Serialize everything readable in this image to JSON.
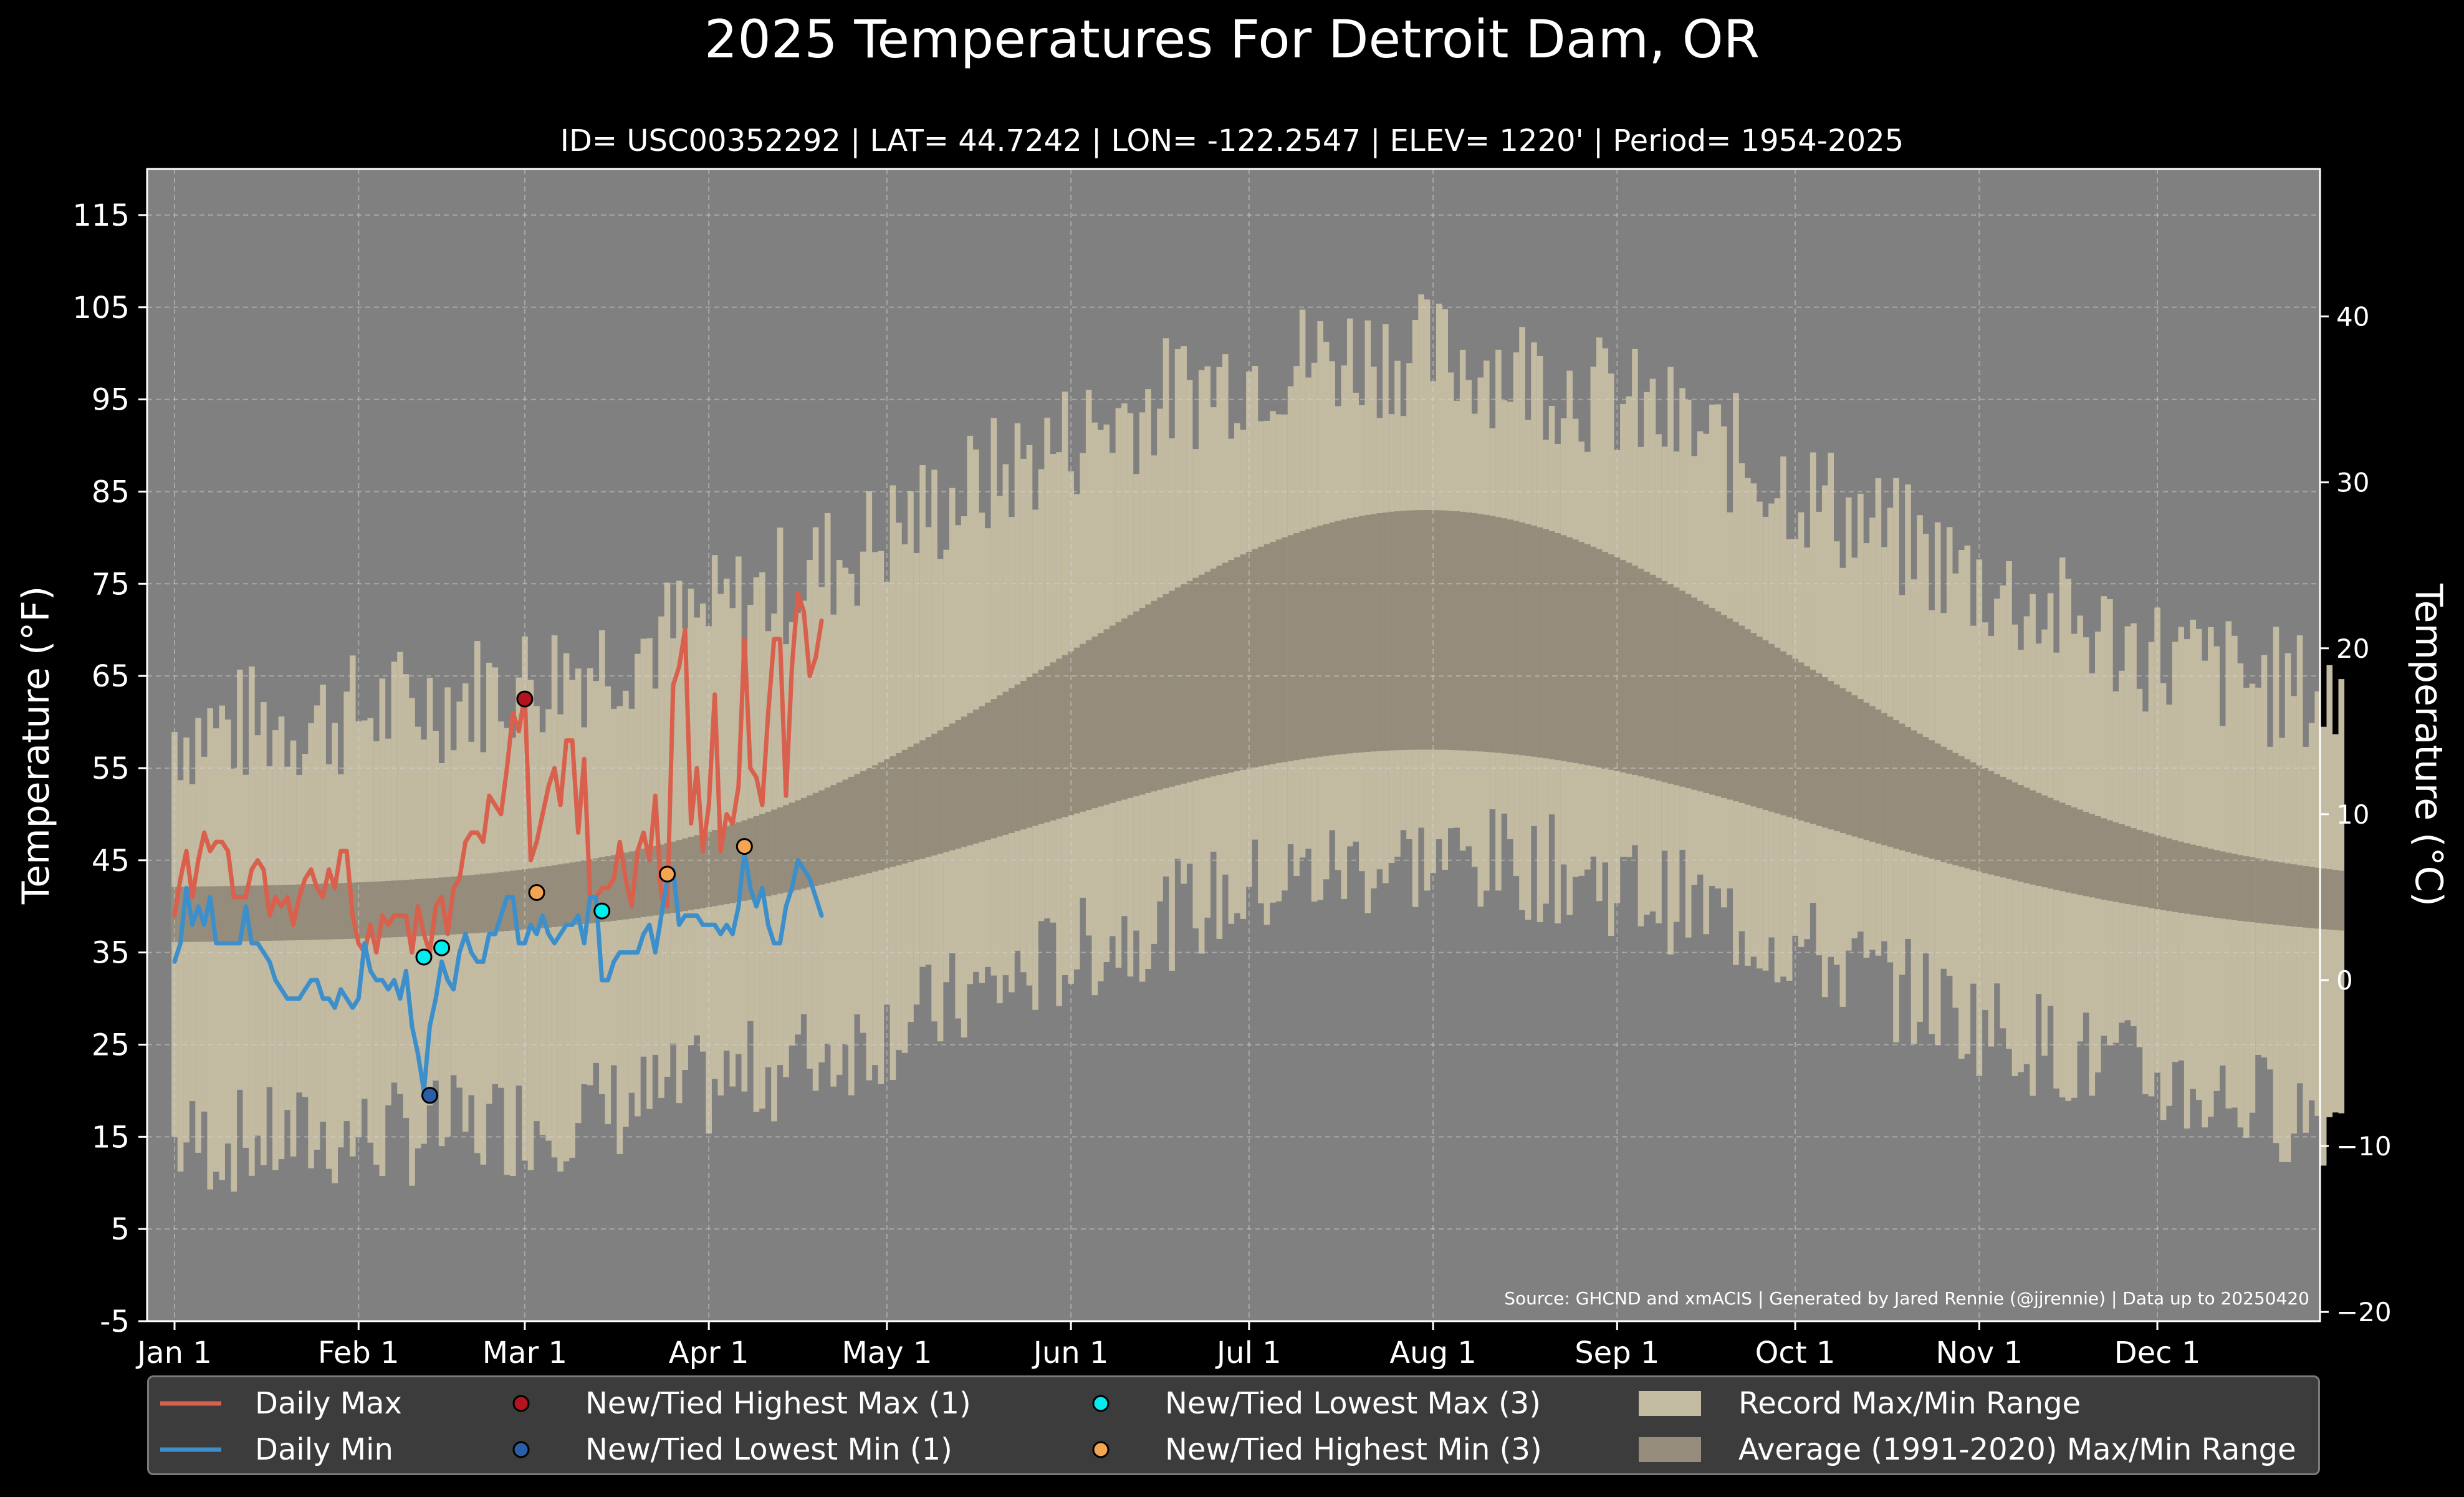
{
  "chart_data": {
    "type": "line",
    "title": "2025 Temperatures For Detroit Dam, OR",
    "subtitle": "ID= USC00352292 | LAT= 44.7242 | LON= -122.2547 | ELEV= 1220' | Period= 1954-2025",
    "ylabel": "Temperature (°F)",
    "ylabel_right": "Temperature (°C)",
    "ylim": [
      -5,
      120
    ],
    "yticks": [
      "-5",
      "5",
      "15",
      "25",
      "35",
      "45",
      "55",
      "65",
      "75",
      "85",
      "95",
      "105",
      "115"
    ],
    "yticks_right": [
      "−20",
      "−10",
      "0",
      "10",
      "20",
      "30",
      "40"
    ],
    "x_month_ticks": [
      "Jan 1",
      "Feb 1",
      "Mar 1",
      "Apr 1",
      "May 1",
      "Jun 1",
      "Jul 1",
      "Aug 1",
      "Sep 1",
      "Oct 1",
      "Nov 1",
      "Dec 1"
    ],
    "grid": true,
    "source_note": "Source: GHCND and xmACIS | Generated by Jared Rennie (@jjrennie) | Data up to 20250420",
    "colors": {
      "daily_max": "#d9604c",
      "daily_min": "#3d8fcb",
      "record_range": "#c3baa2",
      "average_range": "#958c7c",
      "plot_bg": "#808080",
      "record_highest_max": "#b3141f",
      "record_lowest_min": "#2a5fa8",
      "record_lowest_max": "#00eeee",
      "record_highest_min": "#f4a551"
    },
    "series": [
      {
        "name": "Daily Max",
        "x": [
          1,
          2,
          3,
          4,
          5,
          6,
          7,
          8,
          9,
          10,
          11,
          12,
          13,
          14,
          15,
          16,
          17,
          18,
          19,
          20,
          21,
          22,
          23,
          24,
          25,
          26,
          27,
          28,
          29,
          30,
          31,
          32,
          33,
          34,
          35,
          36,
          37,
          38,
          39,
          40,
          41,
          42,
          43,
          44,
          45,
          46,
          47,
          48,
          49,
          50,
          51,
          52,
          53,
          54,
          55,
          56,
          57,
          58,
          59,
          60,
          61,
          62,
          63,
          64,
          65,
          66,
          67,
          68,
          69,
          70,
          71,
          72,
          73,
          74,
          75,
          76,
          77,
          78,
          79,
          80,
          81,
          82,
          83,
          84,
          85,
          86,
          87,
          88,
          89,
          90,
          91,
          92,
          93,
          94,
          95,
          96,
          97,
          98,
          99,
          100,
          101,
          102,
          103,
          104,
          105,
          106,
          107,
          108,
          109,
          110
        ],
        "values": [
          39,
          43,
          46,
          41,
          45,
          48,
          46,
          47,
          47,
          46,
          41,
          41,
          41,
          44,
          45,
          44,
          39,
          41,
          40,
          41,
          38,
          41,
          43,
          44,
          42,
          41,
          44,
          42,
          46,
          46,
          39,
          36,
          35,
          38,
          35,
          39,
          38,
          39,
          39,
          39,
          35,
          40,
          37,
          35,
          40,
          41,
          37,
          42,
          43,
          47,
          48,
          48,
          47,
          52,
          51,
          50,
          55,
          61,
          59,
          63,
          45,
          47,
          50,
          53,
          55,
          51,
          58,
          58,
          48,
          56,
          41,
          41,
          42,
          42,
          43,
          47,
          43,
          40,
          46,
          48,
          45,
          52,
          41,
          40,
          64,
          66,
          70,
          49,
          55,
          46,
          51,
          63,
          46,
          50,
          49,
          53,
          69,
          55,
          54,
          51,
          61,
          69,
          69,
          52,
          66,
          74,
          72,
          65,
          67,
          71
        ],
        "_x_note": "day of year"
      },
      {
        "name": "Daily Min",
        "x": [
          1,
          2,
          3,
          4,
          5,
          6,
          7,
          8,
          9,
          10,
          11,
          12,
          13,
          14,
          15,
          16,
          17,
          18,
          19,
          20,
          21,
          22,
          23,
          24,
          25,
          26,
          27,
          28,
          29,
          30,
          31,
          32,
          33,
          34,
          35,
          36,
          37,
          38,
          39,
          40,
          41,
          42,
          43,
          44,
          45,
          46,
          47,
          48,
          49,
          50,
          51,
          52,
          53,
          54,
          55,
          56,
          57,
          58,
          59,
          60,
          61,
          62,
          63,
          64,
          65,
          66,
          67,
          68,
          69,
          70,
          71,
          72,
          73,
          74,
          75,
          76,
          77,
          78,
          79,
          80,
          81,
          82,
          83,
          84,
          85,
          86,
          87,
          88,
          89,
          90,
          91,
          92,
          93,
          94,
          95,
          96,
          97,
          98,
          99,
          100,
          101,
          102,
          103,
          104,
          105,
          106,
          107,
          108,
          109,
          110
        ],
        "values": [
          34,
          36,
          42,
          38,
          40,
          38,
          41,
          36,
          36,
          36,
          36,
          36,
          40,
          36,
          36,
          35,
          34,
          32,
          31,
          30,
          30,
          30,
          31,
          32,
          32,
          30,
          30,
          29,
          31,
          30,
          29,
          30,
          36,
          33,
          32,
          32,
          31,
          32,
          30,
          33,
          27,
          24,
          20,
          27,
          30,
          34,
          32,
          31,
          35,
          37,
          35,
          34,
          34,
          37,
          37,
          39,
          41,
          41,
          36,
          36,
          38,
          37,
          39,
          37,
          36,
          37,
          38,
          38,
          39,
          36,
          41,
          41,
          32,
          32,
          34,
          35,
          35,
          35,
          35,
          37,
          38,
          35,
          39,
          43,
          44,
          38,
          39,
          39,
          39,
          38,
          38,
          38,
          37,
          38,
          37,
          40,
          46,
          42,
          40,
          42,
          38,
          36,
          36,
          40,
          42,
          45,
          44,
          43,
          41,
          39
        ]
      }
    ],
    "record_markers": [
      {
        "name": "New/Tied Highest Max (1)",
        "points": [
          {
            "x": 60,
            "y": 62.5
          }
        ]
      },
      {
        "name": "New/Tied Lowest Min (1)",
        "points": [
          {
            "x": 44,
            "y": 19.5
          }
        ]
      },
      {
        "name": "New/Tied Lowest Max (3)",
        "points": [
          {
            "x": 43,
            "y": 34.5
          },
          {
            "x": 46,
            "y": 35.5
          },
          {
            "x": 73,
            "y": 39.5
          }
        ]
      },
      {
        "name": "New/Tied Highest Min (3)",
        "points": [
          {
            "x": 62,
            "y": 41.5
          },
          {
            "x": 84,
            "y": 43.5
          },
          {
            "x": 97,
            "y": 46.5
          }
        ]
      }
    ],
    "ranges": [
      {
        "name": "Record Max/Min Range"
      },
      {
        "name": "Average (1991-2020) Max/Min Range"
      }
    ],
    "legend_position": "bottom"
  }
}
